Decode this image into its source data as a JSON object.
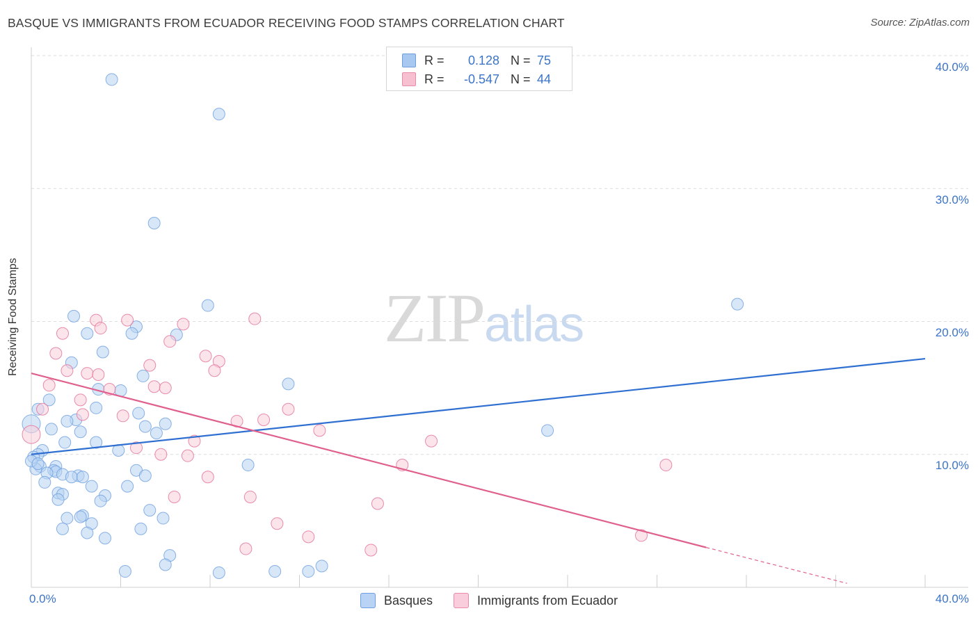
{
  "header": {
    "title": "BASQUE VS IMMIGRANTS FROM ECUADOR RECEIVING FOOD STAMPS CORRELATION CHART",
    "source": "Source: ZipAtlas.com"
  },
  "watermark": {
    "zip": "ZIP",
    "atlas": "atlas"
  },
  "legend_box": {
    "rows": [
      {
        "r_label": "R =",
        "r_value": "0.128",
        "n_label": "N =",
        "n_value": "75",
        "color": "#a9c8f0",
        "border": "#6d9fe0"
      },
      {
        "r_label": "R =",
        "r_value": "-0.547",
        "n_label": "N =",
        "n_value": "44",
        "color": "#f6c0d0",
        "border": "#e98aa7"
      }
    ]
  },
  "bottom_legend": [
    {
      "label": "Basques",
      "color": "#b8d3f3",
      "border": "#6d9fe0"
    },
    {
      "label": "Immigrants from Ecuador",
      "color": "#f9cddb",
      "border": "#e98aa7"
    }
  ],
  "axes": {
    "ylabel": "Receiving Food Stamps",
    "x_min_label": "0.0%",
    "x_max_label": "40.0%",
    "y_ticks": [
      "40.0%",
      "30.0%",
      "20.0%",
      "10.0%"
    ]
  },
  "chart_data": {
    "type": "scatter",
    "title": "BASQUE VS IMMIGRANTS FROM ECUADOR RECEIVING FOOD STAMPS CORRELATION CHART",
    "xlabel": "",
    "ylabel": "Receiving Food Stamps",
    "xlim": [
      0,
      40
    ],
    "ylim": [
      0,
      40
    ],
    "y_gridlines": [
      10,
      20,
      30,
      40
    ],
    "series": [
      {
        "name": "Basques",
        "color": "#6d9fe0",
        "fill": "#b8d3f3",
        "trend": {
          "x": [
            0,
            40
          ],
          "y": [
            10.0,
            17.2
          ]
        },
        "points": [
          [
            3.6,
            38.2
          ],
          [
            8.4,
            35.6
          ],
          [
            5.5,
            27.4
          ],
          [
            7.9,
            21.2
          ],
          [
            31.6,
            21.3
          ],
          [
            1.9,
            20.4
          ],
          [
            4.7,
            19.6
          ],
          [
            4.5,
            19.1
          ],
          [
            2.5,
            19.1
          ],
          [
            6.5,
            19.0
          ],
          [
            3.2,
            17.7
          ],
          [
            1.8,
            16.9
          ],
          [
            5.0,
            15.9
          ],
          [
            11.5,
            15.3
          ],
          [
            3.0,
            14.9
          ],
          [
            4.0,
            14.8
          ],
          [
            0.8,
            14.1
          ],
          [
            0.3,
            13.4
          ],
          [
            2.9,
            13.5
          ],
          [
            4.8,
            13.1
          ],
          [
            2.0,
            12.6
          ],
          [
            1.6,
            12.5
          ],
          [
            5.1,
            12.1
          ],
          [
            6.0,
            12.3
          ],
          [
            0.9,
            11.9
          ],
          [
            2.2,
            11.7
          ],
          [
            5.6,
            11.6
          ],
          [
            23.1,
            11.8
          ],
          [
            1.5,
            10.9
          ],
          [
            2.9,
            10.9
          ],
          [
            3.9,
            10.3
          ],
          [
            0.5,
            10.3
          ],
          [
            0.3,
            10.0
          ],
          [
            0.1,
            9.8
          ],
          [
            0.4,
            9.1
          ],
          [
            1.1,
            9.1
          ],
          [
            9.7,
            9.2
          ],
          [
            0.2,
            8.9
          ],
          [
            1.0,
            8.8
          ],
          [
            1.1,
            8.7
          ],
          [
            0.7,
            8.6
          ],
          [
            1.4,
            8.5
          ],
          [
            4.7,
            8.8
          ],
          [
            5.1,
            8.4
          ],
          [
            2.1,
            8.4
          ],
          [
            1.8,
            8.3
          ],
          [
            2.3,
            8.3
          ],
          [
            0.6,
            7.9
          ],
          [
            4.3,
            7.6
          ],
          [
            2.7,
            7.6
          ],
          [
            1.2,
            7.1
          ],
          [
            1.4,
            7.0
          ],
          [
            3.3,
            6.9
          ],
          [
            1.2,
            6.6
          ],
          [
            3.1,
            6.5
          ],
          [
            5.3,
            5.8
          ],
          [
            2.3,
            5.4
          ],
          [
            5.9,
            5.2
          ],
          [
            1.6,
            5.2
          ],
          [
            2.2,
            5.3
          ],
          [
            2.7,
            4.8
          ],
          [
            1.4,
            4.4
          ],
          [
            4.9,
            4.4
          ],
          [
            2.5,
            4.1
          ],
          [
            3.3,
            3.7
          ],
          [
            6.2,
            2.4
          ],
          [
            6.0,
            1.7
          ],
          [
            13.0,
            1.6
          ],
          [
            8.4,
            1.1
          ],
          [
            12.4,
            1.2
          ],
          [
            10.9,
            1.2
          ],
          [
            4.2,
            1.2
          ],
          [
            0.0,
            12.3
          ],
          [
            0.0,
            9.5
          ],
          [
            0.3,
            9.3
          ]
        ]
      },
      {
        "name": "Immigrants from Ecuador",
        "color": "#e27196",
        "fill": "#f9cddb",
        "trend": {
          "x": [
            0,
            30.2
          ],
          "y": [
            16.1,
            3.0
          ]
        },
        "trend_extension": {
          "x": [
            30.2,
            36.5
          ],
          "y": [
            3.0,
            0.3
          ]
        },
        "points": [
          [
            2.9,
            20.1
          ],
          [
            4.3,
            20.1
          ],
          [
            10.0,
            20.2
          ],
          [
            6.8,
            19.8
          ],
          [
            3.1,
            19.5
          ],
          [
            1.4,
            19.1
          ],
          [
            6.2,
            18.5
          ],
          [
            1.1,
            17.6
          ],
          [
            7.8,
            17.4
          ],
          [
            8.4,
            17.0
          ],
          [
            5.3,
            16.7
          ],
          [
            1.6,
            16.3
          ],
          [
            8.2,
            16.3
          ],
          [
            2.5,
            16.1
          ],
          [
            0.8,
            15.2
          ],
          [
            5.5,
            15.1
          ],
          [
            3.5,
            14.9
          ],
          [
            2.2,
            14.1
          ],
          [
            0.5,
            13.4
          ],
          [
            11.5,
            13.4
          ],
          [
            4.1,
            12.9
          ],
          [
            9.2,
            12.5
          ],
          [
            10.4,
            12.6
          ],
          [
            12.9,
            11.8
          ],
          [
            7.3,
            11.0
          ],
          [
            17.9,
            11.0
          ],
          [
            4.7,
            10.5
          ],
          [
            5.8,
            10.0
          ],
          [
            7.0,
            9.9
          ],
          [
            16.6,
            9.2
          ],
          [
            28.4,
            9.2
          ],
          [
            7.9,
            8.3
          ],
          [
            6.4,
            6.8
          ],
          [
            9.8,
            6.8
          ],
          [
            15.5,
            6.3
          ],
          [
            11.0,
            4.8
          ],
          [
            12.4,
            3.8
          ],
          [
            27.3,
            3.9
          ],
          [
            9.6,
            2.9
          ],
          [
            15.2,
            2.8
          ],
          [
            2.3,
            13.0
          ],
          [
            0.0,
            11.5
          ],
          [
            3.0,
            16.0
          ],
          [
            6.0,
            15.0
          ]
        ]
      }
    ]
  }
}
